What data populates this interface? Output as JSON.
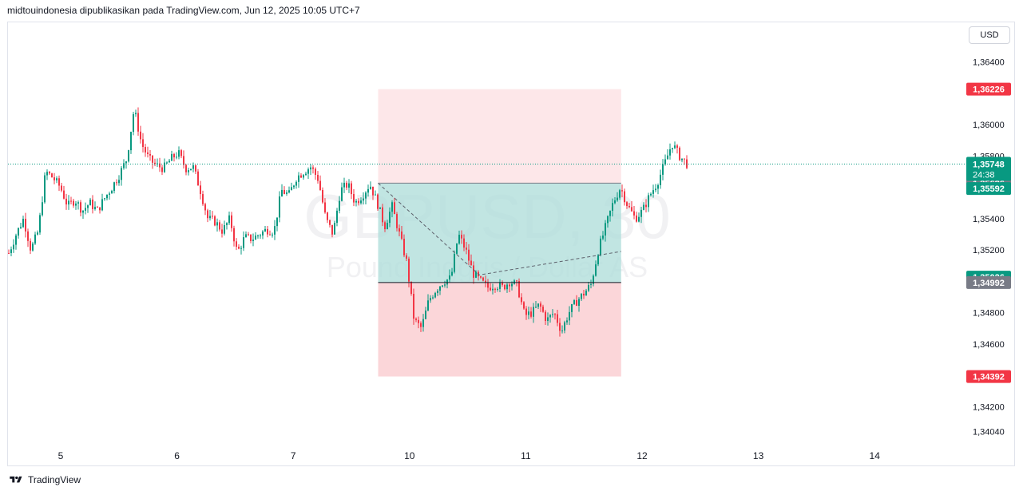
{
  "header": {
    "attribution": "midtouindonesia dipublikasikan pada TradingView.com, Jun 12, 2025 10:05 UTC+7"
  },
  "currency_button": "USD",
  "footer": {
    "brand": "TradingView"
  },
  "watermark": {
    "symbol": "GBPUSD, 30",
    "description": "Pound Inggris / Dollar AS"
  },
  "colors": {
    "up": "#089981",
    "down": "#f23645",
    "profit_zone": "#b2dfdb",
    "loss_zone": "#fbd4d7",
    "grey_label": "#787b86"
  },
  "chart_data": {
    "type": "candlestick",
    "instrument": "GBPUSD",
    "interval": "30",
    "ylim": [
      1.3395,
      1.3655
    ],
    "y_ticks": [
      "1,36400",
      "1,36000",
      "1,35800",
      "1,35400",
      "1,35200",
      "1,34800",
      "1,34600",
      "1,34200",
      "1,34040"
    ],
    "y_tick_values": [
      1.364,
      1.36,
      1.358,
      1.354,
      1.352,
      1.348,
      1.346,
      1.342,
      1.3404
    ],
    "x_ticks": [
      "5",
      "6",
      "7",
      "10",
      "11",
      "12",
      "13",
      "14"
    ],
    "x_tick_index": [
      0,
      1,
      2,
      3,
      4,
      5,
      6,
      7
    ],
    "series": {
      "name": "",
      "close_path": [
        1.3518,
        1.353,
        1.354,
        1.352,
        1.3532,
        1.357,
        1.3566,
        1.356,
        1.3548,
        1.3552,
        1.3545,
        1.355,
        1.3545,
        1.3553,
        1.356,
        1.3568,
        1.3578,
        1.361,
        1.3588,
        1.3578,
        1.3574,
        1.3572,
        1.3578,
        1.3582,
        1.3572,
        1.3573,
        1.3558,
        1.354,
        1.3538,
        1.3532,
        1.354,
        1.3518,
        1.3528,
        1.3527,
        1.353,
        1.3533,
        1.3532,
        1.3558,
        1.3555,
        1.3566,
        1.357,
        1.3573,
        1.3565,
        1.354,
        1.353,
        1.3558,
        1.3562,
        1.355,
        1.3555,
        1.3562,
        1.355,
        1.3535,
        1.3548,
        1.353,
        1.3512,
        1.3475,
        1.347,
        1.3488,
        1.3495,
        1.35,
        1.3502,
        1.353,
        1.352,
        1.3505,
        1.35,
        1.3496,
        1.3498,
        1.3496,
        1.35,
        1.3497,
        1.3478,
        1.348,
        1.3485,
        1.3475,
        1.348,
        1.3468,
        1.348,
        1.3487,
        1.3492,
        1.3498,
        1.352,
        1.3535,
        1.355,
        1.356,
        1.3548,
        1.354,
        1.3545,
        1.3555,
        1.3563,
        1.3575,
        1.3588,
        1.358,
        1.3575
      ]
    },
    "last_price": {
      "value": "1,35748",
      "countdown": "24:38",
      "y": 1.35748
    },
    "price_labels": [
      {
        "value": "1,36226",
        "y": 1.36226,
        "color": "#f23645"
      },
      {
        "value": "1,35626",
        "y": 1.35626,
        "color": "#787b86"
      },
      {
        "value": "1,35592",
        "y": 1.35592,
        "color": "#089981"
      },
      {
        "value": "1,35026",
        "y": 1.35026,
        "color": "#089981"
      },
      {
        "value": "1,34992",
        "y": 1.34992,
        "color": "#787b86"
      },
      {
        "value": "1,34392",
        "y": 1.34392,
        "color": "#f23645"
      }
    ],
    "position_tool": {
      "type": "short-position",
      "entry": 1.35626,
      "stop": 1.36226,
      "target": 1.34992,
      "x_start": 2.73,
      "x_end": 4.82
    },
    "grid": false
  }
}
